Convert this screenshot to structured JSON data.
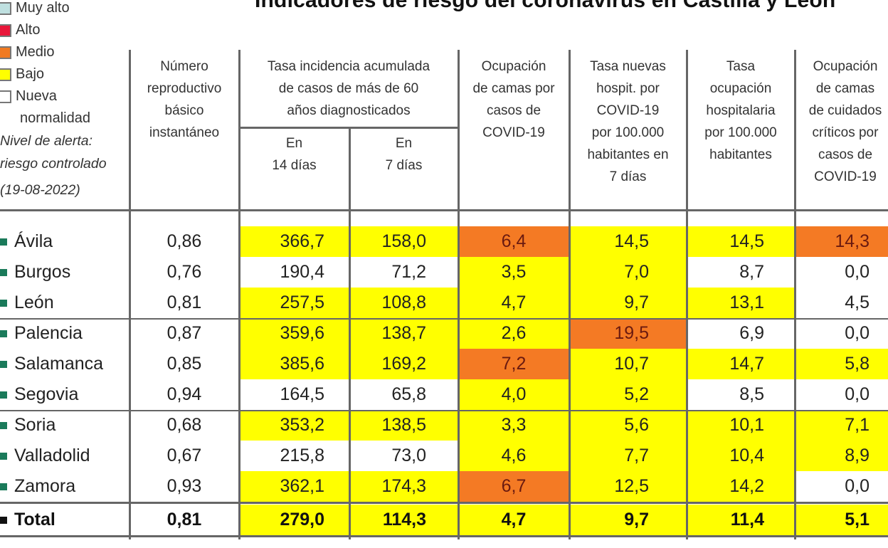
{
  "title": "Indicadores de riesgo del coronavirus en Castilla y León",
  "legend": {
    "items": [
      {
        "label": "Muy alto",
        "color": "#bfe0e0"
      },
      {
        "label": "Alto",
        "color": "#e8173a"
      },
      {
        "label": "Medio",
        "color": "#f07a22"
      },
      {
        "label": "Bajo",
        "color": "#ffff00"
      },
      {
        "label": "Nueva",
        "color": "#ffffff"
      }
    ],
    "nueva_cont": "normalidad",
    "note_line1": "Nivel de alerta:",
    "note_line2": "riesgo controlado",
    "date": "(19-08-2022)"
  },
  "colors": {
    "bajo": "#ffff00",
    "medio": "#f47a24",
    "none": "#ffffff"
  },
  "headers": {
    "r0": [
      "Número",
      "reproductivo",
      "básico",
      "instantáneo"
    ],
    "incidencia": [
      "Tasa incidencia acumulada",
      "de casos de más de 60",
      "años diagnosticados"
    ],
    "sub14": [
      "En",
      "14 días"
    ],
    "sub7": [
      "En",
      "7 días"
    ],
    "camas": [
      "Ocupación",
      "de camas por",
      "casos de",
      "COVID-19"
    ],
    "hosp": [
      "Tasa nuevas",
      "hospit. por",
      "COVID-19",
      "por 100.000",
      "habitantes en",
      "7 días"
    ],
    "ocup": [
      "Tasa",
      "ocupación",
      "hospitalaria",
      "por 100.000",
      "habitantes"
    ],
    "uci": [
      "Ocupación",
      "de camas",
      "de cuidados",
      "críticos por",
      "casos de",
      "COVID-19"
    ]
  },
  "rows": [
    {
      "name": "Ávila",
      "r0": "0,86",
      "i14": "366,7",
      "i7": "158,0",
      "camas": "6,4",
      "hosp": "14,5",
      "ocup": "14,5",
      "uci": "14,3",
      "lv": [
        "bajo",
        "bajo",
        "medio",
        "bajo",
        "bajo",
        "medio"
      ]
    },
    {
      "name": "Burgos",
      "r0": "0,76",
      "i14": "190,4",
      "i7": "71,2",
      "camas": "3,5",
      "hosp": "7,0",
      "ocup": "8,7",
      "uci": "0,0",
      "lv": [
        "none",
        "none",
        "bajo",
        "bajo",
        "none",
        "none"
      ]
    },
    {
      "name": "León",
      "r0": "0,81",
      "i14": "257,5",
      "i7": "108,8",
      "camas": "4,7",
      "hosp": "9,7",
      "ocup": "13,1",
      "uci": "4,5",
      "lv": [
        "bajo",
        "bajo",
        "bajo",
        "bajo",
        "bajo",
        "none"
      ]
    },
    {
      "name": "Palencia",
      "r0": "0,87",
      "i14": "359,6",
      "i7": "138,7",
      "camas": "2,6",
      "hosp": "19,5",
      "ocup": "6,9",
      "uci": "0,0",
      "lv": [
        "bajo",
        "bajo",
        "bajo",
        "medio",
        "none",
        "none"
      ]
    },
    {
      "name": "Salamanca",
      "r0": "0,85",
      "i14": "385,6",
      "i7": "169,2",
      "camas": "7,2",
      "hosp": "10,7",
      "ocup": "14,7",
      "uci": "5,8",
      "lv": [
        "bajo",
        "bajo",
        "medio",
        "bajo",
        "bajo",
        "bajo"
      ]
    },
    {
      "name": "Segovia",
      "r0": "0,94",
      "i14": "164,5",
      "i7": "65,8",
      "camas": "4,0",
      "hosp": "5,2",
      "ocup": "8,5",
      "uci": "0,0",
      "lv": [
        "none",
        "none",
        "bajo",
        "bajo",
        "none",
        "none"
      ]
    },
    {
      "name": "Soria",
      "r0": "0,68",
      "i14": "353,2",
      "i7": "138,5",
      "camas": "3,3",
      "hosp": "5,6",
      "ocup": "10,1",
      "uci": "7,1",
      "lv": [
        "bajo",
        "bajo",
        "bajo",
        "bajo",
        "bajo",
        "bajo"
      ]
    },
    {
      "name": "Valladolid",
      "r0": "0,67",
      "i14": "215,8",
      "i7": "73,0",
      "camas": "4,6",
      "hosp": "7,7",
      "ocup": "10,4",
      "uci": "8,9",
      "lv": [
        "none",
        "none",
        "bajo",
        "bajo",
        "bajo",
        "bajo"
      ]
    },
    {
      "name": "Zamora",
      "r0": "0,93",
      "i14": "362,1",
      "i7": "174,3",
      "camas": "6,7",
      "hosp": "12,5",
      "ocup": "14,2",
      "uci": "0,0",
      "lv": [
        "bajo",
        "bajo",
        "medio",
        "bajo",
        "bajo",
        "none"
      ]
    }
  ],
  "total": {
    "name": "Total",
    "r0": "0,81",
    "i14": "279,0",
    "i7": "114,3",
    "camas": "4,7",
    "hosp": "9,7",
    "ocup": "11,4",
    "uci": "5,1",
    "lv": [
      "bajo",
      "bajo",
      "bajo",
      "bajo",
      "bajo",
      "bajo"
    ]
  }
}
